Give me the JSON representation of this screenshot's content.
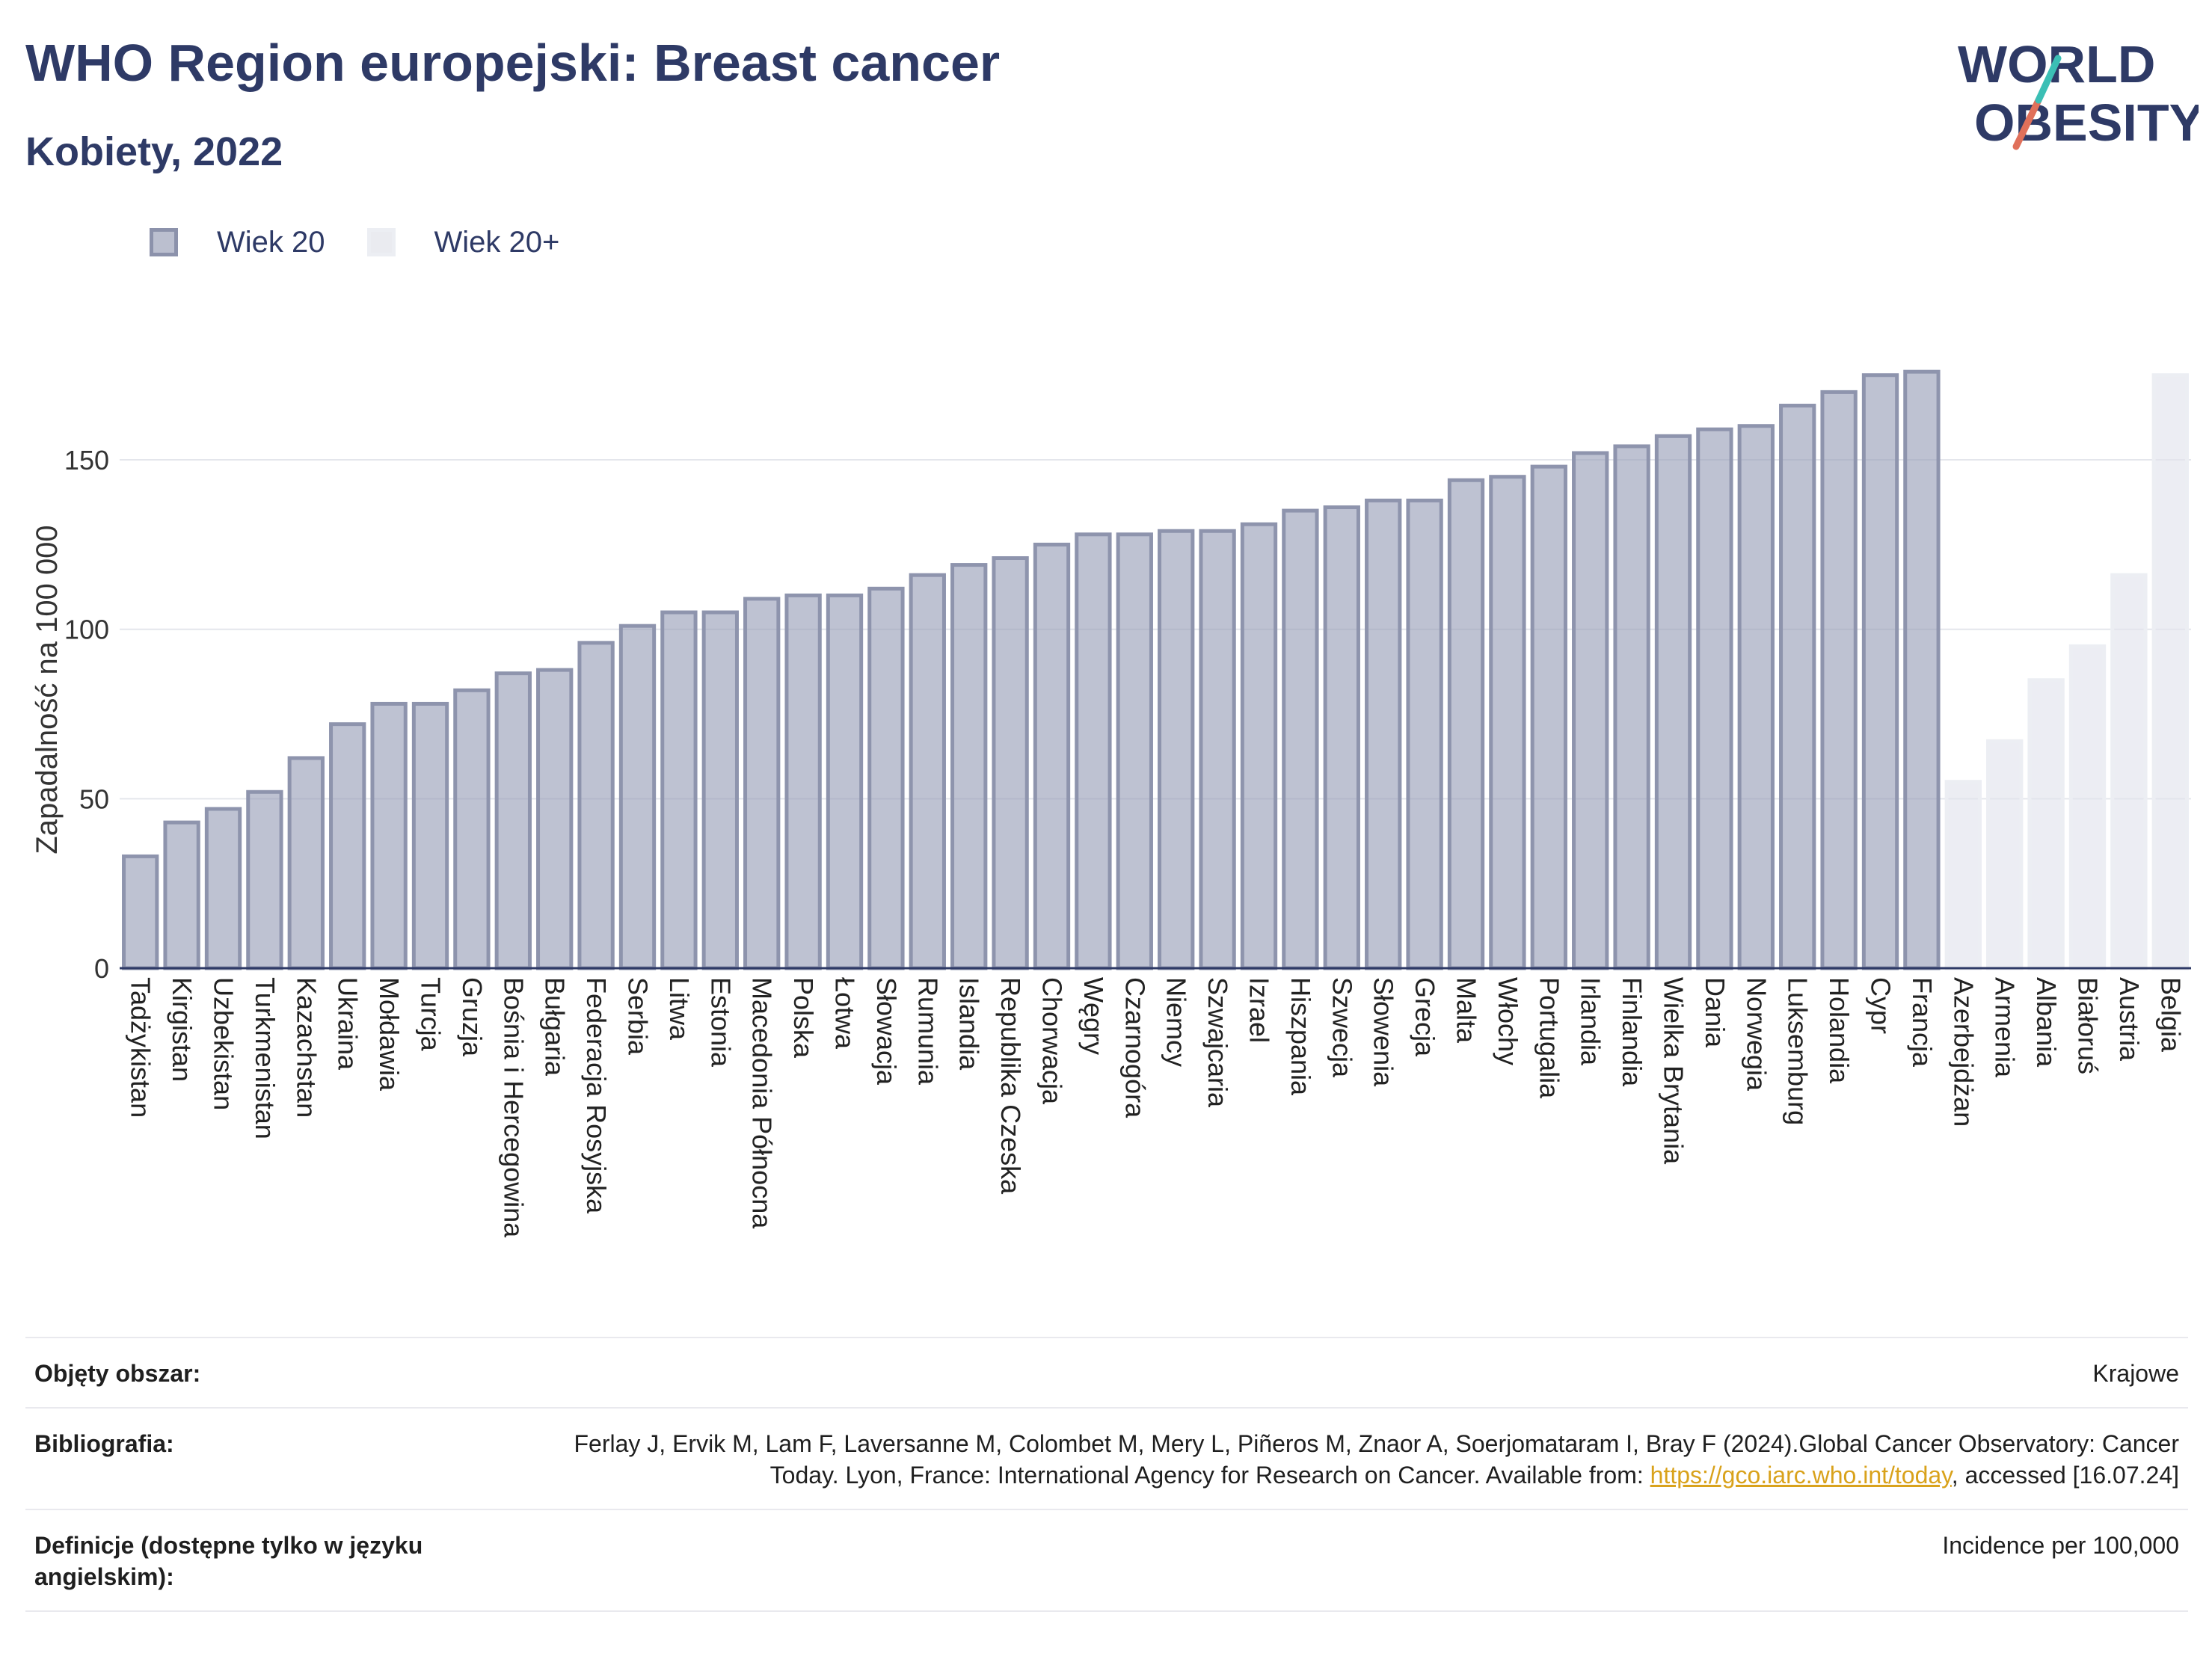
{
  "header": {
    "title": "WHO Region europejski: Breast cancer",
    "subtitle": "Kobiety, 2022"
  },
  "logo": {
    "line1": "WORLD",
    "line2": "OBESITY",
    "colors": {
      "text": "#2e3a66",
      "slash_teal": "#3bbfb5",
      "slash_red": "#e0705a"
    }
  },
  "legend": {
    "items": [
      {
        "label": "Wiek 20",
        "color": "#9a9fb8"
      },
      {
        "label": "Wiek 20+",
        "color": "#e6e8ee"
      }
    ]
  },
  "chart_data": {
    "type": "bar",
    "ylabel": "Zapadalność na 100 000",
    "ylim": [
      0,
      182
    ],
    "yticks": [
      0,
      50,
      100,
      150
    ],
    "grid": true,
    "legend_position": "top-left",
    "categories": [
      "Tadżykistan",
      "Kirgistan",
      "Uzbekistan",
      "Turkmenistan",
      "Kazachstan",
      "Ukraina",
      "Mołdawia",
      "Turcja",
      "Gruzja",
      "Bośnia i Hercegowina",
      "Bułgaria",
      "Federacja Rosyjska",
      "Serbia",
      "Litwa",
      "Estonia",
      "Macedonia Północna",
      "Polska",
      "Łotwa",
      "Słowacja",
      "Rumunia",
      "Islandia",
      "Republika Czeska",
      "Chorwacja",
      "Węgry",
      "Czarnogóra",
      "Niemcy",
      "Szwajcaria",
      "Izrael",
      "Hiszpania",
      "Szwecja",
      "Słowenia",
      "Grecja",
      "Malta",
      "Włochy",
      "Portugalia",
      "Irlandia",
      "Finlandia",
      "Wielka Brytania",
      "Dania",
      "Norwegia",
      "Luksemburg",
      "Holandia",
      "Cypr",
      "Francja",
      "Azerbejdżan",
      "Armenia",
      "Albania",
      "Białoruś",
      "Austria",
      "Belgia"
    ],
    "values": [
      33,
      43,
      47,
      52,
      62,
      72,
      78,
      78,
      82,
      87,
      88,
      96,
      101,
      105,
      105,
      109,
      110,
      110,
      112,
      116,
      119,
      121,
      125,
      128,
      128,
      129,
      129,
      131,
      135,
      136,
      138,
      138,
      144,
      145,
      148,
      152,
      154,
      157,
      159,
      160,
      166,
      170,
      175,
      176,
      55,
      67,
      85,
      95,
      116,
      175
    ],
    "series_index": [
      0,
      0,
      0,
      0,
      0,
      0,
      0,
      0,
      0,
      0,
      0,
      0,
      0,
      0,
      0,
      0,
      0,
      0,
      0,
      0,
      0,
      0,
      0,
      0,
      0,
      0,
      0,
      0,
      0,
      0,
      0,
      0,
      0,
      0,
      0,
      0,
      0,
      0,
      0,
      0,
      0,
      0,
      0,
      0,
      1,
      1,
      1,
      1,
      1,
      1
    ]
  },
  "meta": {
    "rows": [
      {
        "label": "Objęty obszar:",
        "value": "Krajowe"
      },
      {
        "label": "Bibliografia:",
        "value_pre": "Ferlay J, Ervik M, Lam F, Laversanne M, Colombet M, Mery L, Piñeros M, Znaor A, Soerjomataram I, Bray F (2024).Global Cancer Observatory: Cancer Today. Lyon, France: International Agency for Research on Cancer. Available from: ",
        "link": "https://gco.iarc.who.int/today",
        "value_post": ", accessed [16.07.24]"
      },
      {
        "label": "Definicje (dostępne tylko w języku angielskim):",
        "value": "Incidence per 100,000"
      }
    ]
  }
}
